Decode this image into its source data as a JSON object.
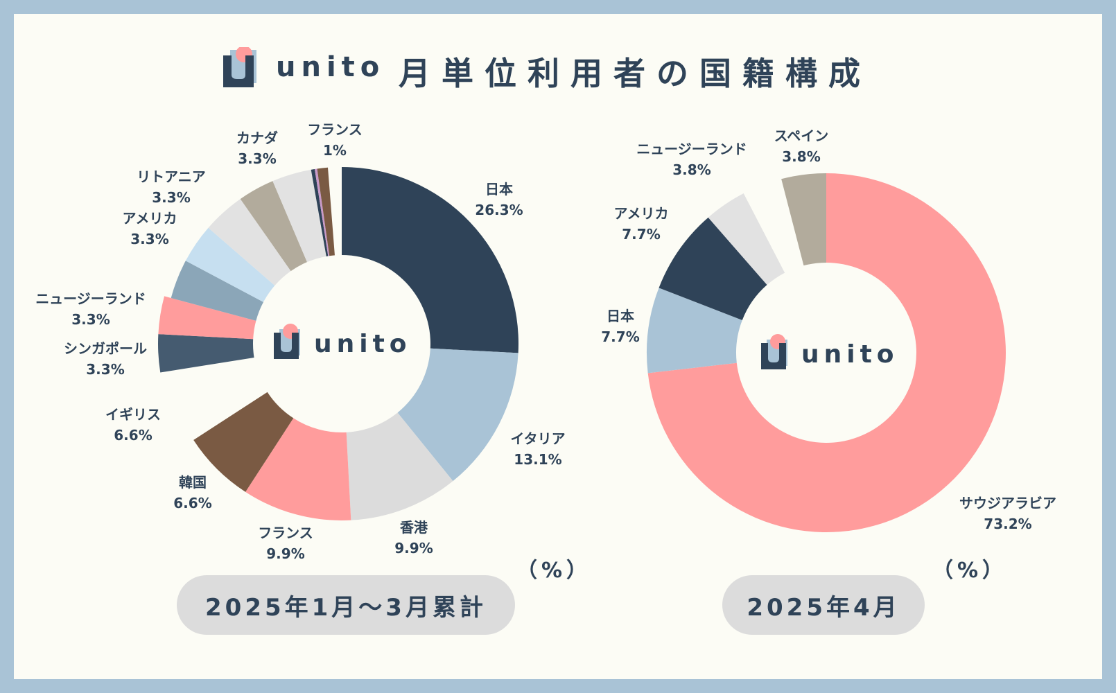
{
  "header": {
    "brand": "unito",
    "title": "月単位利用者の国籍構成"
  },
  "colors": {
    "navy": "#2f4358",
    "light_blue": "#a9c3d6",
    "light_gray": "#dcdcdc",
    "pink": "#ff9c9c",
    "brown": "#7a5a43",
    "slate": "#455b70",
    "white": "#fcfcf5",
    "steel": "#8ba6b8",
    "pale_blue": "#c6dff0",
    "pale_gray": "#e2e2e2",
    "taupe": "#b2ab9c",
    "lavender": "#c99ac9"
  },
  "chart_data": [
    {
      "type": "pie",
      "subtype": "donut",
      "title": "2025年1月〜3月累計",
      "unit_label": "（%）",
      "center_logo": "unito",
      "categories": [
        "日本",
        "イタリア",
        "香港",
        "フランス",
        "韓国",
        "イギリス",
        "シンガポール",
        "ニュージーランド",
        "アメリカ",
        "リトアニア",
        "カナダ",
        "フランス"
      ],
      "values": [
        26.3,
        13.1,
        9.9,
        9.9,
        6.6,
        6.6,
        3.3,
        3.3,
        3.3,
        3.3,
        3.3,
        1
      ],
      "value_labels": [
        "26.3%",
        "13.1%",
        "9.9%",
        "9.9%",
        "6.6%",
        "6.6%",
        "3.3%",
        "3.3%",
        "3.3%",
        "3.3%",
        "3.3%",
        "1%"
      ],
      "slice_colors": [
        "navy",
        "light_blue",
        "light_gray",
        "pink",
        "brown",
        "white",
        "slate",
        "pink",
        "steel",
        "pale_blue",
        "pale_gray",
        "taupe"
      ],
      "extra_slivers": [
        "pale_gray",
        "navy",
        "lavender",
        "brown"
      ]
    },
    {
      "type": "pie",
      "subtype": "donut",
      "title": "2025年4月",
      "unit_label": "（%）",
      "center_logo": "unito",
      "categories": [
        "サウジアラビア",
        "日本",
        "アメリカ",
        "ニュージーランド",
        "スペイン"
      ],
      "values": [
        73.2,
        7.7,
        7.7,
        3.8,
        3.8
      ],
      "value_labels": [
        "73.2%",
        "7.7%",
        "7.7%",
        "3.8%",
        "3.8%"
      ],
      "slice_colors": [
        "pink",
        "light_blue",
        "navy",
        "pale_gray",
        "white"
      ],
      "extra_slivers": [
        "taupe"
      ]
    }
  ]
}
